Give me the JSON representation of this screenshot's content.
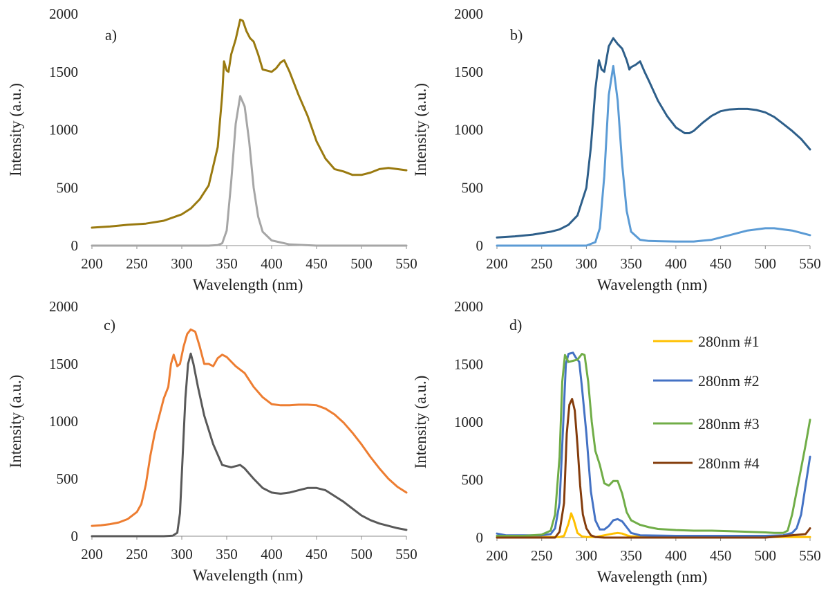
{
  "chart_data": [
    {
      "type": "line",
      "panel_label": "a)",
      "xlabel": "Wavelength (nm)",
      "ylabel": "Intensity (a.u.)",
      "xlim": [
        200,
        550
      ],
      "ylim": [
        0,
        2000
      ],
      "xticks": [
        200,
        250,
        300,
        350,
        400,
        450,
        500,
        550
      ],
      "yticks": [
        0,
        500,
        1000,
        1500,
        2000
      ],
      "grid": false,
      "series": [
        {
          "color": "#9a7a10",
          "x": [
            200,
            220,
            240,
            260,
            280,
            300,
            310,
            320,
            330,
            340,
            345,
            347,
            350,
            352,
            355,
            360,
            365,
            368,
            372,
            376,
            380,
            385,
            390,
            395,
            400,
            405,
            410,
            414,
            420,
            430,
            440,
            450,
            460,
            470,
            480,
            490,
            495,
            500,
            510,
            520,
            530,
            540,
            550
          ],
          "y": [
            155,
            165,
            180,
            190,
            215,
            270,
            320,
            400,
            520,
            850,
            1300,
            1590,
            1510,
            1500,
            1650,
            1780,
            1950,
            1940,
            1850,
            1790,
            1760,
            1650,
            1520,
            1510,
            1500,
            1530,
            1580,
            1600,
            1500,
            1300,
            1120,
            900,
            750,
            660,
            640,
            610,
            610,
            610,
            630,
            660,
            670,
            660,
            650
          ]
        },
        {
          "color": "#a6a6a6",
          "x": [
            200,
            300,
            330,
            340,
            345,
            350,
            355,
            360,
            365,
            370,
            375,
            380,
            385,
            390,
            400,
            420,
            450,
            550
          ],
          "y": [
            0,
            0,
            0,
            5,
            20,
            130,
            550,
            1050,
            1290,
            1200,
            900,
            500,
            250,
            120,
            45,
            10,
            0,
            0
          ]
        }
      ]
    },
    {
      "type": "line",
      "panel_label": "b)",
      "xlabel": "Wavelength (nm)",
      "ylabel": "Intensity (a.u.)",
      "xlim": [
        200,
        550
      ],
      "ylim": [
        0,
        2000
      ],
      "xticks": [
        200,
        250,
        300,
        350,
        400,
        450,
        500,
        550
      ],
      "yticks": [
        0,
        500,
        1000,
        1500,
        2000
      ],
      "grid": false,
      "series": [
        {
          "color": "#2e5f8a",
          "x": [
            200,
            220,
            240,
            260,
            270,
            280,
            290,
            300,
            305,
            310,
            314,
            317,
            320,
            325,
            330,
            335,
            340,
            345,
            348,
            350,
            355,
            360,
            365,
            370,
            380,
            390,
            400,
            410,
            415,
            420,
            430,
            440,
            450,
            460,
            470,
            480,
            490,
            500,
            510,
            520,
            530,
            540,
            550
          ],
          "y": [
            70,
            80,
            95,
            120,
            140,
            180,
            260,
            500,
            850,
            1350,
            1600,
            1520,
            1500,
            1720,
            1790,
            1740,
            1700,
            1600,
            1520,
            1540,
            1560,
            1590,
            1500,
            1420,
            1250,
            1120,
            1020,
            970,
            970,
            990,
            1060,
            1120,
            1160,
            1175,
            1180,
            1180,
            1170,
            1150,
            1110,
            1050,
            990,
            920,
            830
          ]
        },
        {
          "color": "#5b9bd5",
          "x": [
            200,
            300,
            310,
            315,
            320,
            325,
            330,
            335,
            340,
            345,
            350,
            360,
            370,
            380,
            400,
            420,
            440,
            460,
            480,
            500,
            510,
            520,
            530,
            540,
            550
          ],
          "y": [
            0,
            0,
            30,
            150,
            600,
            1300,
            1550,
            1250,
            700,
            300,
            120,
            50,
            40,
            38,
            35,
            35,
            50,
            90,
            130,
            150,
            150,
            140,
            130,
            110,
            90
          ]
        }
      ]
    },
    {
      "type": "line",
      "panel_label": "c)",
      "xlabel": "Wavelength (nm)",
      "ylabel": "Intensity (a.u.)",
      "xlim": [
        200,
        550
      ],
      "ylim": [
        0,
        2000
      ],
      "xticks": [
        200,
        250,
        300,
        350,
        400,
        450,
        500,
        550
      ],
      "yticks": [
        0,
        500,
        1000,
        1500,
        2000
      ],
      "grid": false,
      "series": [
        {
          "color": "#ed7d31",
          "x": [
            200,
            210,
            220,
            230,
            240,
            250,
            255,
            260,
            265,
            270,
            275,
            280,
            285,
            288,
            291,
            295,
            298,
            302,
            306,
            310,
            315,
            320,
            325,
            330,
            335,
            340,
            345,
            350,
            360,
            370,
            380,
            390,
            400,
            410,
            420,
            430,
            440,
            450,
            460,
            470,
            480,
            490,
            500,
            510,
            520,
            530,
            540,
            550
          ],
          "y": [
            90,
            95,
            105,
            120,
            150,
            210,
            280,
            450,
            700,
            900,
            1050,
            1200,
            1300,
            1500,
            1580,
            1480,
            1500,
            1650,
            1760,
            1800,
            1780,
            1650,
            1500,
            1500,
            1480,
            1550,
            1580,
            1560,
            1480,
            1420,
            1300,
            1210,
            1150,
            1140,
            1140,
            1145,
            1145,
            1140,
            1110,
            1060,
            990,
            900,
            800,
            690,
            590,
            500,
            430,
            380
          ]
        },
        {
          "color": "#595959",
          "x": [
            200,
            280,
            290,
            295,
            298,
            301,
            304,
            307,
            310,
            313,
            318,
            325,
            335,
            345,
            355,
            365,
            370,
            380,
            390,
            400,
            410,
            420,
            430,
            440,
            450,
            460,
            470,
            480,
            490,
            500,
            510,
            520,
            530,
            540,
            550
          ],
          "y": [
            0,
            0,
            5,
            30,
            200,
            700,
            1200,
            1500,
            1590,
            1500,
            1300,
            1050,
            800,
            620,
            600,
            620,
            590,
            500,
            420,
            380,
            370,
            380,
            400,
            420,
            420,
            400,
            350,
            300,
            240,
            180,
            140,
            110,
            90,
            70,
            55
          ]
        }
      ]
    },
    {
      "type": "line",
      "panel_label": "d)",
      "xlabel": "Wavelength (nm)",
      "ylabel": "Intensity (a.u.)",
      "xlim": [
        200,
        550
      ],
      "ylim": [
        0,
        2000
      ],
      "xticks": [
        200,
        250,
        300,
        350,
        400,
        450,
        500,
        550
      ],
      "yticks": [
        0,
        500,
        1000,
        1500,
        2000
      ],
      "grid": false,
      "legend": "right",
      "series": [
        {
          "name": "280nm #1",
          "color": "#ffc000",
          "x": [
            200,
            270,
            275,
            280,
            283,
            286,
            290,
            295,
            300,
            310,
            320,
            330,
            335,
            340,
            345,
            350,
            400,
            500,
            550
          ],
          "y": [
            5,
            5,
            15,
            120,
            210,
            150,
            40,
            10,
            5,
            5,
            20,
            35,
            40,
            35,
            20,
            10,
            5,
            5,
            5
          ]
        },
        {
          "name": "280nm #2",
          "color": "#4472c4",
          "x": [
            200,
            210,
            250,
            260,
            265,
            270,
            273,
            277,
            280,
            285,
            288,
            292,
            295,
            300,
            305,
            310,
            315,
            320,
            325,
            330,
            335,
            340,
            345,
            350,
            360,
            400,
            450,
            500,
            520,
            530,
            535,
            540,
            545,
            550
          ],
          "y": [
            35,
            20,
            20,
            30,
            80,
            300,
            800,
            1500,
            1590,
            1600,
            1560,
            1520,
            1300,
            900,
            400,
            150,
            70,
            70,
            100,
            150,
            160,
            140,
            90,
            40,
            20,
            15,
            15,
            15,
            20,
            40,
            80,
            200,
            450,
            700
          ]
        },
        {
          "name": "280nm #3",
          "color": "#70ad47",
          "x": [
            200,
            230,
            250,
            260,
            265,
            270,
            273,
            276,
            280,
            285,
            290,
            295,
            298,
            302,
            306,
            310,
            315,
            320,
            325,
            330,
            335,
            340,
            345,
            350,
            355,
            360,
            370,
            380,
            400,
            420,
            440,
            460,
            480,
            500,
            510,
            520,
            525,
            530,
            535,
            540,
            545,
            550
          ],
          "y": [
            15,
            15,
            25,
            60,
            200,
            700,
            1350,
            1580,
            1520,
            1530,
            1540,
            1590,
            1580,
            1350,
            1000,
            750,
            630,
            470,
            450,
            490,
            490,
            380,
            220,
            150,
            130,
            110,
            90,
            75,
            65,
            60,
            60,
            55,
            50,
            45,
            40,
            40,
            60,
            200,
            400,
            600,
            800,
            1020
          ]
        },
        {
          "name": "280nm #4",
          "color": "#843c0c",
          "x": [
            200,
            265,
            270,
            275,
            278,
            281,
            284,
            287,
            290,
            293,
            296,
            300,
            305,
            310,
            320,
            400,
            500,
            545,
            548,
            550
          ],
          "y": [
            0,
            0,
            50,
            300,
            900,
            1150,
            1200,
            1100,
            800,
            450,
            200,
            80,
            20,
            5,
            0,
            0,
            0,
            30,
            60,
            80
          ]
        }
      ]
    }
  ]
}
